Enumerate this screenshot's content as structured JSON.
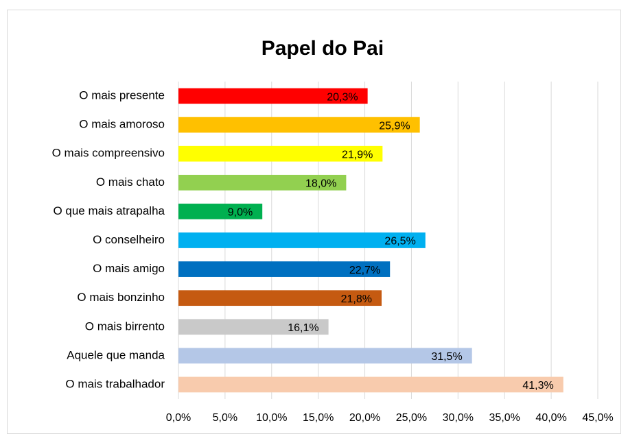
{
  "chart_data": {
    "type": "bar",
    "orientation": "horizontal",
    "title": "Papel do Pai",
    "categories": [
      "O mais presente",
      "O mais amoroso",
      "O mais compreensivo",
      "O mais chato",
      "O que mais atrapalha",
      "O conselheiro",
      "O mais amigo",
      "O mais bonzinho",
      "O mais birrento",
      "Aquele que manda",
      "O mais trabalhador"
    ],
    "values": [
      20.3,
      25.9,
      21.9,
      18.0,
      9.0,
      26.5,
      22.7,
      21.8,
      16.1,
      31.5,
      41.3
    ],
    "value_labels": [
      "20,3%",
      "25,9%",
      "21,9%",
      "18,0%",
      "9,0%",
      "26,5%",
      "22,7%",
      "21,8%",
      "16,1%",
      "31,5%",
      "41,3%"
    ],
    "colors": [
      "#ff0000",
      "#ffc000",
      "#ffff00",
      "#92d050",
      "#00b050",
      "#00b0f0",
      "#0070c0",
      "#c55a11",
      "#c9c9c9",
      "#b4c7e7",
      "#f8cbad"
    ],
    "xlim": [
      0,
      45
    ],
    "xticks": [
      {
        "value": 0,
        "label": "0,0%"
      },
      {
        "value": 5,
        "label": "5,0%"
      },
      {
        "value": 10,
        "label": "10,0%"
      },
      {
        "value": 15,
        "label": "15,0%"
      },
      {
        "value": 20,
        "label": "20,0%"
      },
      {
        "value": 25,
        "label": "25,0%"
      },
      {
        "value": 30,
        "label": "30,0%"
      },
      {
        "value": 35,
        "label": "35,0%"
      },
      {
        "value": 40,
        "label": "40,0%"
      },
      {
        "value": 45,
        "label": "45,0%"
      }
    ],
    "grid": true
  }
}
